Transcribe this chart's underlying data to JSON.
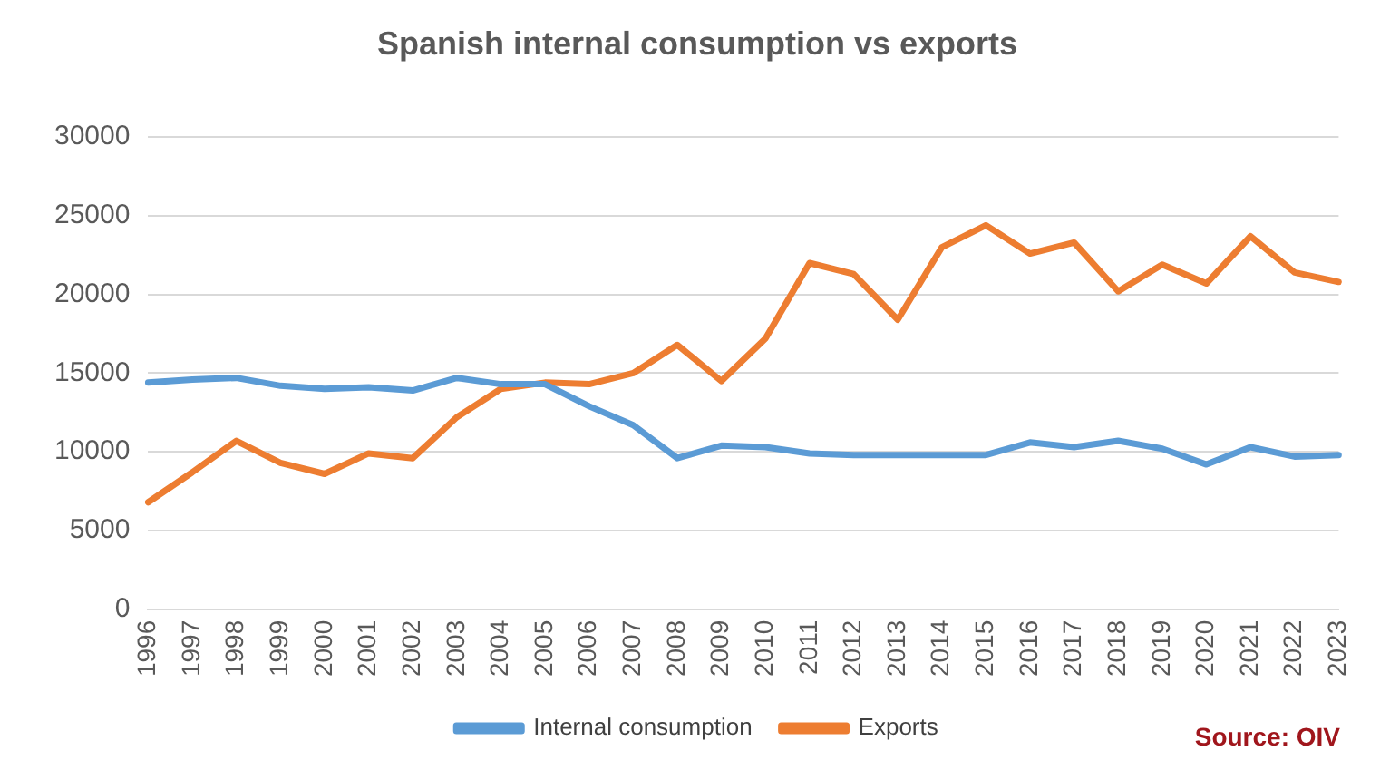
{
  "chart_data": {
    "type": "line",
    "title": "Spanish internal consumption vs exports",
    "categories": [
      "1996",
      "1997",
      "1998",
      "1999",
      "2000",
      "2001",
      "2002",
      "2003",
      "2004",
      "2005",
      "2006",
      "2007",
      "2008",
      "2009",
      "2010",
      "2011",
      "2012",
      "2013",
      "2014",
      "2015",
      "2016",
      "2017",
      "2018",
      "2019",
      "2020",
      "2021",
      "2022",
      "2023"
    ],
    "series": [
      {
        "name": "Internal consumption",
        "color": "#5b9bd5",
        "values": [
          14400,
          14600,
          14700,
          14200,
          14000,
          14100,
          13900,
          14700,
          14300,
          14300,
          12900,
          11700,
          9600,
          10400,
          10300,
          9900,
          9800,
          9800,
          9800,
          9800,
          10600,
          10300,
          10700,
          10200,
          9200,
          10300,
          9700,
          9800
        ]
      },
      {
        "name": "Exports",
        "color": "#ed7d31",
        "values": [
          6800,
          8700,
          10700,
          9300,
          8600,
          9900,
          9600,
          12200,
          14000,
          14400,
          14300,
          15000,
          16800,
          14500,
          17200,
          22000,
          21300,
          18400,
          23000,
          24400,
          22600,
          23300,
          20200,
          21900,
          20700,
          23700,
          21400,
          20800
        ]
      }
    ],
    "ylim": [
      0,
      30000
    ],
    "yticks": [
      0,
      5000,
      10000,
      15000,
      20000,
      25000,
      30000
    ],
    "grid": "y",
    "legend": "bottom",
    "marker": "none",
    "line_style": "solid",
    "annotations": [
      "Source: OIV"
    ]
  }
}
